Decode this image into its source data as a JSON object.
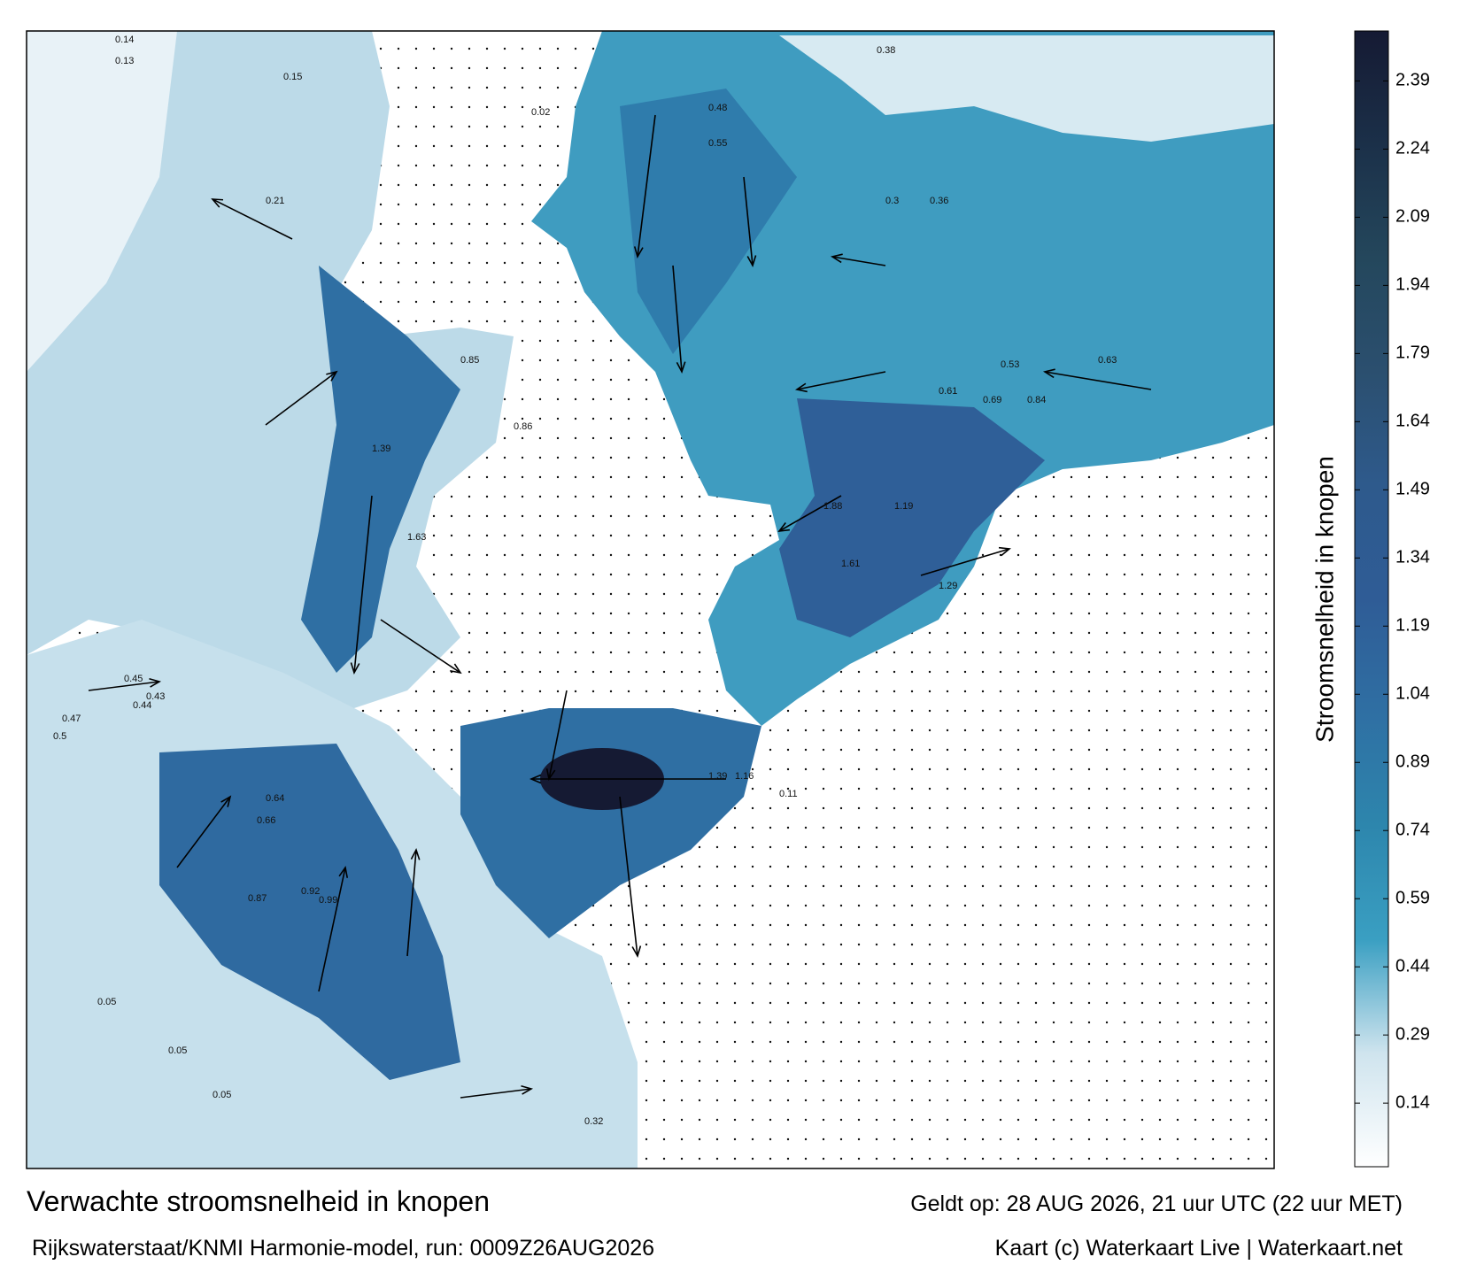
{
  "title": "Verwachte stroomsnelheid in knopen",
  "subtitle": "Rijkswaterstaat/KNMI Harmonie-model, run: 0009Z26AUG2026",
  "valid_time": "Geldt op: 28 AUG 2026, 21 uur UTC (22 uur MET)",
  "credit": "Kaart (c) Waterkaart Live | Waterkaart.net",
  "colorbar": {
    "label": "Stroomsnelheid in knopen",
    "lim": [
      0,
      2.5
    ],
    "ticks": [
      0.14,
      0.29,
      0.44,
      0.59,
      0.74,
      0.89,
      1.04,
      1.19,
      1.34,
      1.49,
      1.64,
      1.79,
      1.94,
      2.09,
      2.24,
      2.39
    ],
    "colors": [
      "#ffffff",
      "#cfe4ee",
      "#3a9fc2",
      "#2d86ad",
      "#2f6fa3",
      "#2f5c96",
      "#2e5a8c",
      "#2b4f6f",
      "#24475c",
      "#1b3049",
      "#151a33"
    ]
  },
  "speed_labels": [
    0.14,
    0.13,
    0.15,
    0.21,
    0.45,
    0.43,
    0.44,
    0.47,
    0.5,
    0.85,
    1.39,
    1.63,
    0.86,
    1.19,
    1.88,
    1.61,
    1.29,
    0.69,
    0.84,
    0.61,
    0.53,
    0.3,
    0.36,
    0.55,
    0.48,
    0.38,
    0.63,
    0.92,
    0.99,
    0.87,
    0.66,
    0.64,
    0.05,
    0.05,
    0.05,
    0.32,
    1.39,
    1.16,
    0.11,
    0.02
  ]
}
